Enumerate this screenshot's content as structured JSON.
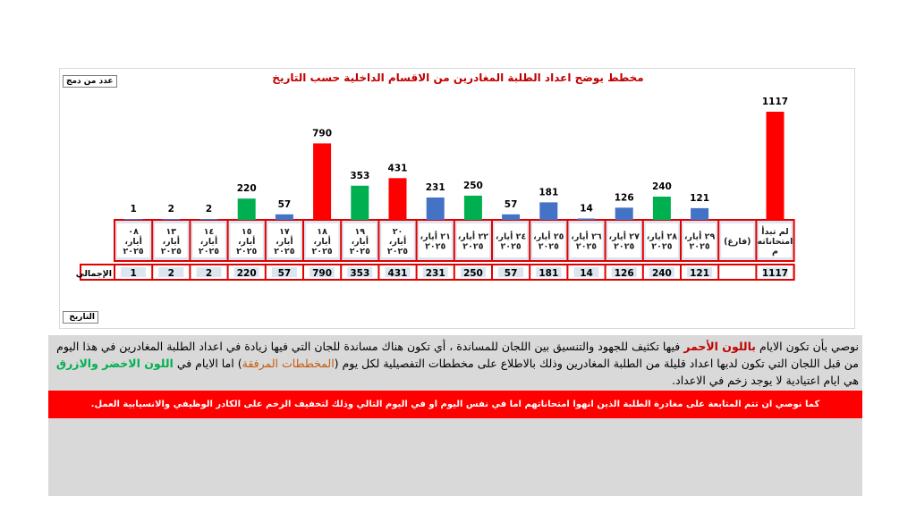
{
  "chart_data": {
    "type": "bar",
    "title": "مخطط يوضح اعداد الطلبة المغادرين من الاقسام الداخلية حسب التاريخ",
    "ylabel": "عدد من دمج",
    "xlabel": "التاريخ",
    "row_label": "الإجمالي",
    "categories": [
      [
        "٠٨",
        "أيار،",
        "٢٠٢٥"
      ],
      [
        "١٣",
        "أيار،",
        "٢٠٢٥"
      ],
      [
        "١٤",
        "أيار،",
        "٢٠٢٥"
      ],
      [
        "١٥",
        "أيار،",
        "٢٠٢٥"
      ],
      [
        "١٧",
        "أيار،",
        "٢٠٢٥"
      ],
      [
        "١٨",
        "أيار،",
        "٢٠٢٥"
      ],
      [
        "١٩",
        "أيار،",
        "٢٠٢٥"
      ],
      [
        "٢٠",
        "أيار،",
        "٢٠٢٥"
      ],
      [
        "٢١ أيار،",
        "٢٠٢٥"
      ],
      [
        "٢٢ أيار،",
        "٢٠٢٥"
      ],
      [
        "٢٤ أيار،",
        "٢٠٢٥"
      ],
      [
        "٢٥ أيار،",
        "٢٠٢٥"
      ],
      [
        "٢٦ أيار،",
        "٢٠٢٥"
      ],
      [
        "٢٧ أيار،",
        "٢٠٢٥"
      ],
      [
        "٢٨ أيار،",
        "٢٠٢٥"
      ],
      [
        "٢٩ أيار،",
        "٢٠٢٥"
      ],
      [
        "(فارغ)"
      ],
      [
        "لم تبدأ",
        "امتحاناته",
        "م"
      ]
    ],
    "values": [
      1,
      2,
      2,
      220,
      57,
      790,
      353,
      431,
      231,
      250,
      57,
      181,
      14,
      126,
      240,
      121,
      null,
      1117
    ],
    "bar_colors": [
      "#4472c4",
      "#4472c4",
      "#4472c4",
      "#00b050",
      "#4472c4",
      "#ff0000",
      "#00b050",
      "#ff0000",
      "#4472c4",
      "#00b050",
      "#4472c4",
      "#4472c4",
      "#4472c4",
      "#4472c4",
      "#00b050",
      "#4472c4",
      "#4472c4",
      "#ff0000"
    ],
    "ylim": [
      0,
      1200
    ],
    "grid": false,
    "legend": "none"
  },
  "note": {
    "p1": "نوصي بأن تكون الايام ",
    "red_text": "باللون الأحمر",
    "p2": "  فيها تكثيف للجهود والتنسيق بين اللجان للمساندة ، أي تكون هناك مساندة للجان التي فيها زيادة في اعداد الطلبة المغادرين في هذا اليوم من قبل اللجان التي تكون لديها اعداد قليلة من الطلبة المغادرين وذلك بالاطلاع على مخططات التفصيلية لكل يوم (",
    "orange_text": "المخططات المرفقة",
    "p3": ") اما الايام في ",
    "green_text": "اللون الاخضر والازرق",
    "p4": " هي ايام اعتيادية لا يوجد زخم في الاعداد."
  },
  "banner": "كما نوصي ان تتم المتابعة على مغادرة الطلبة الذين انهوا امتحاناتهم اما في نفس اليوم او في اليوم التالي وذلك لتخفيف الزخم على الكادر الوظيفي والانسيابية العمل."
}
